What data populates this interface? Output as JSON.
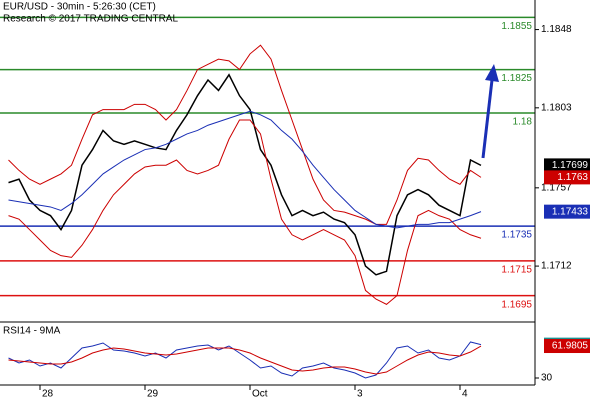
{
  "header": {
    "title": "EUR/USD - 30min - 5:26:30 (CET)",
    "source": "Research © 2017 TRADING CENTRAL"
  },
  "chart_data": [
    {
      "type": "line",
      "categories": [
        null,
        null,
        null,
        "28",
        null,
        null,
        null,
        null,
        null,
        null,
        null,
        null,
        null,
        "29",
        null,
        null,
        null,
        null,
        null,
        null,
        null,
        null,
        null,
        "Oct",
        null,
        null,
        null,
        null,
        null,
        null,
        null,
        null,
        null,
        "3",
        null,
        null,
        null,
        null,
        null,
        null,
        null,
        null,
        null,
        "4",
        null,
        null
      ],
      "series": [
        {
          "color": "#000000",
          "values": [
            1.176,
            1.1762,
            1.175,
            1.1744,
            1.1741,
            1.1733,
            1.1744,
            1.177,
            1.1779,
            1.179,
            1.1784,
            1.1782,
            1.1784,
            1.1782,
            1.178,
            1.1779,
            1.179,
            1.1799,
            1.181,
            1.1819,
            1.1813,
            1.1822,
            1.181,
            1.1802,
            1.1779,
            1.177,
            1.1753,
            1.1741,
            1.1744,
            1.1741,
            1.1743,
            1.1739,
            1.1737,
            1.173,
            1.1712,
            1.1707,
            1.1709,
            1.1741,
            1.1753,
            1.1756,
            1.1753,
            1.1747,
            1.1744,
            1.1741,
            1.1773,
            1.17699
          ]
        },
        {
          "color": "#cc0000",
          "values": [
            1.1773,
            1.1767,
            1.1762,
            1.1759,
            1.1762,
            1.1765,
            1.177,
            1.1785,
            1.1799,
            1.1802,
            1.1802,
            1.1802,
            1.1805,
            1.1805,
            1.1802,
            1.1796,
            1.1802,
            1.1813,
            1.1825,
            1.1828,
            1.1831,
            1.183,
            1.1825,
            1.1834,
            1.1839,
            1.1831,
            1.1813,
            1.1796,
            1.1779,
            1.1762,
            1.175,
            1.1744,
            1.1743,
            1.1741,
            1.1739,
            1.1736,
            1.1736,
            1.175,
            1.1767,
            1.1774,
            1.1773,
            1.1767,
            1.1762,
            1.1759,
            1.1767,
            1.1763
          ]
        },
        {
          "color": "#cc0000",
          "values": [
            1.1741,
            1.1739,
            1.1733,
            1.1727,
            1.1721,
            1.1718,
            1.1717,
            1.1724,
            1.1733,
            1.1744,
            1.1753,
            1.1759,
            1.1765,
            1.1769,
            1.177,
            1.177,
            1.1773,
            1.1767,
            1.1765,
            1.1767,
            1.177,
            1.1785,
            1.1796,
            1.1796,
            1.1788,
            1.1762,
            1.1739,
            1.173,
            1.1727,
            1.173,
            1.1733,
            1.173,
            1.1727,
            1.1718,
            1.1698,
            1.1693,
            1.169,
            1.1695,
            1.1721,
            1.1741,
            1.1744,
            1.1741,
            1.1739,
            1.1733,
            1.173,
            1.1728
          ]
        },
        {
          "color": "#1a2fb5",
          "values": [
            1.175,
            1.1749,
            1.1748,
            1.1747,
            1.1746,
            1.1744,
            1.1748,
            1.1753,
            1.1759,
            1.1765,
            1.1769,
            1.1773,
            1.1776,
            1.1779,
            1.178,
            1.1782,
            1.1785,
            1.1788,
            1.179,
            1.1793,
            1.1795,
            1.1797,
            1.1799,
            1.1801,
            1.1799,
            1.1796,
            1.179,
            1.1785,
            1.1778,
            1.177,
            1.1763,
            1.1756,
            1.175,
            1.1744,
            1.174,
            1.1736,
            1.1735,
            1.1734,
            1.1735,
            1.1736,
            1.1736,
            1.1737,
            1.1737,
            1.1739,
            1.1741,
            1.17433
          ]
        }
      ],
      "tag_series": [
        0,
        1,
        3
      ],
      "levels": [
        {
          "value": 1.1855,
          "color": "#2a8a2a"
        },
        {
          "value": 1.1825,
          "color": "#2a8a2a"
        },
        {
          "value": 1.18,
          "color": "#2a8a2a"
        },
        {
          "value": 1.1735,
          "color": "#1a2fb5"
        },
        {
          "value": 1.1715,
          "color": "#dd1111"
        },
        {
          "value": 1.1695,
          "color": "#dd1111"
        }
      ],
      "ylim": [
        1.1681,
        1.1865
      ],
      "yticks": [
        1.1712,
        1.1757,
        1.1803,
        1.1848
      ]
    },
    {
      "type": "line",
      "title": "RSI14 - 9MA",
      "series": [
        {
          "color": "#1a2fb5",
          "values": [
            50,
            45,
            48,
            42,
            45,
            40,
            50,
            60,
            62,
            65,
            58,
            57,
            55,
            52,
            55,
            50,
            58,
            60,
            62,
            63,
            58,
            62,
            55,
            48,
            40,
            42,
            35,
            32,
            40,
            42,
            45,
            40,
            38,
            35,
            30,
            33,
            45,
            60,
            62,
            55,
            58,
            50,
            48,
            52,
            66,
            63.3601
          ]
        },
        {
          "color": "#cc0000",
          "values": [
            48,
            47,
            46,
            45,
            44,
            44,
            46,
            50,
            55,
            58,
            60,
            59,
            57,
            55,
            54,
            53,
            54,
            56,
            58,
            60,
            60,
            60,
            58,
            55,
            50,
            46,
            42,
            38,
            37,
            38,
            40,
            41,
            41,
            39,
            36,
            34,
            36,
            42,
            48,
            53,
            56,
            55,
            53,
            52,
            56,
            61.9805
          ]
        }
      ],
      "tag_colors": [
        "#1b8f8f",
        "#cc0000"
      ],
      "ylim": [
        23,
        83
      ],
      "yticks": [
        30
      ]
    }
  ]
}
